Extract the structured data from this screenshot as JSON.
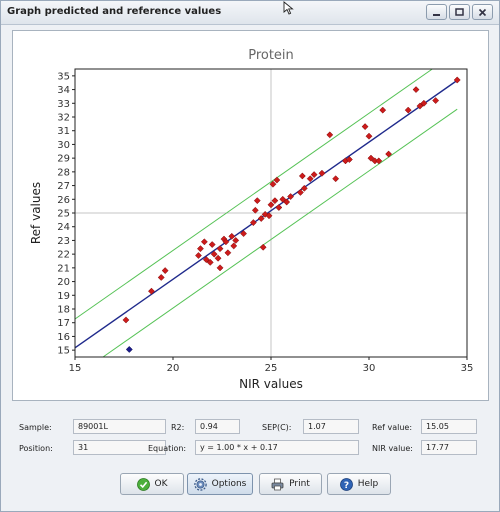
{
  "window": {
    "title": "Graph predicted and reference values"
  },
  "chart_data": {
    "type": "scatter",
    "title": "Protein",
    "xlabel": "NIR values",
    "ylabel": "Ref values",
    "xlim": [
      15,
      35
    ],
    "ylim": [
      14.5,
      35.5
    ],
    "xticks": [
      15,
      20,
      25,
      30,
      35
    ],
    "yticks": [
      15,
      16,
      17,
      18,
      19,
      20,
      21,
      22,
      23,
      24,
      25,
      26,
      27,
      28,
      29,
      30,
      31,
      32,
      33,
      34,
      35
    ],
    "grid": "center-lines",
    "regression": {
      "slope": 1.0,
      "intercept": 0.17,
      "x_range": [
        15.0,
        34.5
      ]
    },
    "confidence_band": {
      "offset": 2.1,
      "x_range": [
        15.0,
        34.5
      ]
    },
    "colors": {
      "points": "#cc1b1b",
      "selected": "#1a1a8c",
      "fit": "#1f2a8c",
      "band": "#55c255",
      "grid": "#c4c4c4"
    },
    "selected_point": [
      17.77,
      15.05
    ],
    "points": [
      [
        17.6,
        17.2
      ],
      [
        18.9,
        19.3
      ],
      [
        19.4,
        20.3
      ],
      [
        19.6,
        20.8
      ],
      [
        21.3,
        21.9
      ],
      [
        21.4,
        22.4
      ],
      [
        21.6,
        22.9
      ],
      [
        21.7,
        21.6
      ],
      [
        21.9,
        21.4
      ],
      [
        22.0,
        22.7
      ],
      [
        22.1,
        22.0
      ],
      [
        22.3,
        21.7
      ],
      [
        22.4,
        22.4
      ],
      [
        22.4,
        21.0
      ],
      [
        22.6,
        23.1
      ],
      [
        22.7,
        22.9
      ],
      [
        22.8,
        22.1
      ],
      [
        23.0,
        23.3
      ],
      [
        23.1,
        22.6
      ],
      [
        23.2,
        23.0
      ],
      [
        23.6,
        23.5
      ],
      [
        24.1,
        24.3
      ],
      [
        24.2,
        25.2
      ],
      [
        24.3,
        25.9
      ],
      [
        24.5,
        24.6
      ],
      [
        24.6,
        22.5
      ],
      [
        24.7,
        24.9
      ],
      [
        24.9,
        24.8
      ],
      [
        25.0,
        25.6
      ],
      [
        25.1,
        27.1
      ],
      [
        25.2,
        25.9
      ],
      [
        25.3,
        27.4
      ],
      [
        25.4,
        25.4
      ],
      [
        25.6,
        26.0
      ],
      [
        25.8,
        25.8
      ],
      [
        26.0,
        26.2
      ],
      [
        26.5,
        26.5
      ],
      [
        26.6,
        27.7
      ],
      [
        26.7,
        26.8
      ],
      [
        27.0,
        27.5
      ],
      [
        27.2,
        27.8
      ],
      [
        27.6,
        27.9
      ],
      [
        28.0,
        30.7
      ],
      [
        28.3,
        27.5
      ],
      [
        28.8,
        28.8
      ],
      [
        29.0,
        28.9
      ],
      [
        29.8,
        31.3
      ],
      [
        30.0,
        30.6
      ],
      [
        30.1,
        29.0
      ],
      [
        30.3,
        28.8
      ],
      [
        30.5,
        28.8
      ],
      [
        30.7,
        32.5
      ],
      [
        31.0,
        29.3
      ],
      [
        32.0,
        32.5
      ],
      [
        32.4,
        34.0
      ],
      [
        32.6,
        32.8
      ],
      [
        32.8,
        33.0
      ],
      [
        33.4,
        33.2
      ],
      [
        34.5,
        34.7
      ]
    ]
  },
  "stats": {
    "sample_label": "Sample:",
    "sample_value": "89001L",
    "r2_label": "R2:",
    "r2_value": "0.94",
    "sep_label": "SEP(C):",
    "sep_value": "1.07",
    "ref_label": "Ref value:",
    "ref_value": "15.05",
    "position_label": "Position:",
    "position_value": "31",
    "equation_label": "Equation:",
    "equation_value": "y = 1.00 * x + 0.17",
    "nir_label": "NIR value:",
    "nir_value": "17.77"
  },
  "buttons": {
    "ok": "OK",
    "options": "Options",
    "print": "Print",
    "help": "Help"
  },
  "icons": {
    "minimize": "minimize-icon",
    "maximize": "maximize-icon",
    "close": "close-icon",
    "ok": "check-icon",
    "options": "gear-icon",
    "print": "printer-icon",
    "help": "help-icon"
  }
}
